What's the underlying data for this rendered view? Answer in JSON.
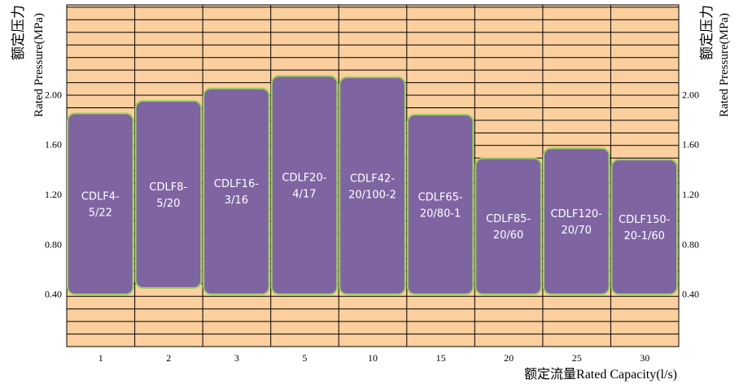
{
  "chart_data": {
    "type": "bar",
    "x_categories": [
      "1",
      "2",
      "3",
      "5",
      "10",
      "15",
      "20",
      "25",
      "30"
    ],
    "y_ticks": [
      "0.40",
      "0.80",
      "1.20",
      "1.60",
      "2.00"
    ],
    "ylabel_left": {
      "cn": "额定压力",
      "en": "Rated Pressure(MPa)"
    },
    "ylabel_right": {
      "cn": "额定压力",
      "en": "Rated Pressure(MPa)"
    },
    "xlabel": "额定流量Rated Capacity(l/s)",
    "grid": true,
    "colors": {
      "background": "#fccf9e",
      "grid": "#000000",
      "bar": "#7f64a2",
      "bar_border": "#9dd05e",
      "bar_text": "#ffffff",
      "axis_text": "#000000"
    },
    "ylim": [
      -0.02,
      2.72
    ],
    "series": [
      {
        "label_lines": [
          "CDLF4-",
          "5/22"
        ],
        "low": 0.4,
        "high": 1.85
      },
      {
        "label_lines": [
          "CDLF8-",
          "5/20"
        ],
        "low": 0.45,
        "high": 1.95
      },
      {
        "label_lines": [
          "CDLF16-",
          "3/16"
        ],
        "low": 0.4,
        "high": 2.05
      },
      {
        "label_lines": [
          "CDLF20-",
          "4/17"
        ],
        "low": 0.4,
        "high": 2.15
      },
      {
        "label_lines": [
          "CDLF42-",
          "20/100-2"
        ],
        "low": 0.4,
        "high": 2.14
      },
      {
        "label_lines": [
          "CDLF65-",
          "20/80-1"
        ],
        "low": 0.4,
        "high": 1.84
      },
      {
        "label_lines": [
          "CDLF85-",
          "20/60"
        ],
        "low": 0.4,
        "high": 1.49
      },
      {
        "label_lines": [
          "CDLF120-",
          "20/70"
        ],
        "low": 0.4,
        "high": 1.57
      },
      {
        "label_lines": [
          "CDLF150-",
          "20-1/60"
        ],
        "low": 0.4,
        "high": 1.48
      }
    ]
  }
}
